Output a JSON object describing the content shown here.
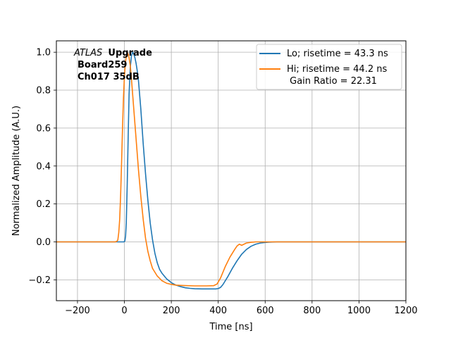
{
  "chart_data": {
    "type": "line",
    "title": "",
    "xlabel": "Time [ns]",
    "ylabel": "Normalized Amplitude (A.U.)",
    "xlim": [
      -290,
      1200
    ],
    "ylim": [
      -0.31,
      1.06
    ],
    "xticks": [
      -200,
      0,
      200,
      400,
      600,
      800,
      1000,
      1200
    ],
    "yticks": [
      -0.2,
      0.0,
      0.2,
      0.4,
      0.6,
      0.8,
      1.0
    ],
    "xtick_labels": [
      "−200",
      "0",
      "200",
      "400",
      "600",
      "800",
      "1000",
      "1200"
    ],
    "ytick_labels": [
      "−0.2",
      "0.0",
      "0.2",
      "0.4",
      "0.6",
      "0.8",
      "1.0"
    ],
    "grid": true,
    "legend_position": "top-right",
    "annotation": {
      "italic": "ATLAS",
      "bold": "Upgrade",
      "line2": "Board259",
      "line3": "Ch017 35dB"
    },
    "series": [
      {
        "name": "Lo; risetime = 43.3 ns",
        "color": "#1f77b4",
        "x": [
          -290,
          -10,
          -2,
          2,
          5,
          8,
          12,
          16,
          20,
          25,
          30,
          35,
          40,
          45,
          50,
          55,
          60,
          70,
          80,
          90,
          100,
          110,
          120,
          130,
          140,
          150,
          160,
          170,
          180,
          200,
          220,
          240,
          260,
          280,
          300,
          330,
          360,
          390,
          400,
          410,
          420,
          440,
          460,
          480,
          500,
          520,
          540,
          560,
          580,
          600,
          620,
          650,
          700,
          800,
          1000,
          1200
        ],
        "y": [
          0.0,
          0.0,
          0.0,
          0.005,
          0.03,
          0.1,
          0.3,
          0.55,
          0.78,
          0.92,
          0.98,
          1.0,
          0.99,
          0.97,
          0.94,
          0.9,
          0.85,
          0.7,
          0.52,
          0.36,
          0.22,
          0.1,
          0.01,
          -0.06,
          -0.11,
          -0.145,
          -0.165,
          -0.18,
          -0.195,
          -0.215,
          -0.228,
          -0.236,
          -0.242,
          -0.245,
          -0.247,
          -0.248,
          -0.248,
          -0.248,
          -0.246,
          -0.24,
          -0.225,
          -0.185,
          -0.14,
          -0.1,
          -0.065,
          -0.04,
          -0.023,
          -0.012,
          -0.006,
          -0.003,
          -0.001,
          0.0,
          0.0,
          0.0,
          0.0,
          0.0
        ]
      },
      {
        "name": "Hi; risetime = 44.2 ns\n Gain Ratio = 22.31",
        "color": "#ff7f0e",
        "x": [
          -290,
          -40,
          -32,
          -28,
          -24,
          -20,
          -16,
          -12,
          -8,
          -4,
          0,
          4,
          8,
          12,
          16,
          20,
          25,
          30,
          35,
          40,
          50,
          60,
          70,
          80,
          90,
          100,
          110,
          120,
          140,
          160,
          180,
          200,
          220,
          250,
          300,
          350,
          380,
          395,
          410,
          430,
          450,
          470,
          480,
          490,
          500,
          510,
          520,
          540,
          560,
          600,
          700,
          1000,
          1200
        ],
        "y": [
          0.0,
          0.0,
          0.003,
          0.01,
          0.05,
          0.12,
          0.25,
          0.42,
          0.6,
          0.76,
          0.87,
          0.94,
          0.98,
          1.0,
          0.99,
          0.97,
          0.93,
          0.86,
          0.78,
          0.7,
          0.54,
          0.38,
          0.24,
          0.12,
          0.02,
          -0.05,
          -0.1,
          -0.14,
          -0.18,
          -0.205,
          -0.218,
          -0.224,
          -0.228,
          -0.23,
          -0.232,
          -0.232,
          -0.231,
          -0.222,
          -0.19,
          -0.13,
          -0.08,
          -0.04,
          -0.022,
          -0.012,
          -0.018,
          -0.012,
          -0.006,
          -0.002,
          0.0,
          0.0,
          0.0,
          0.0,
          0.0
        ]
      }
    ]
  }
}
